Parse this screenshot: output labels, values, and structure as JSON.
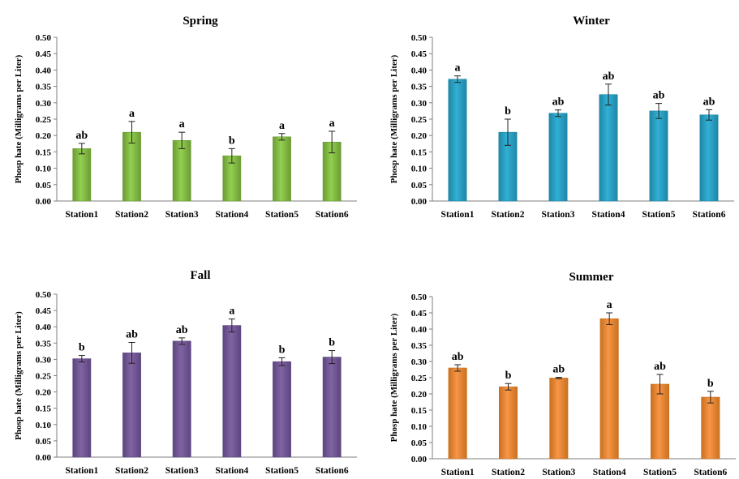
{
  "chart_data": [
    {
      "type": "bar",
      "title": "Spring",
      "ylabel": "Phosp hate (Milligrams per Liter)",
      "categories": [
        "Station1",
        "Station2",
        "Station3",
        "Station4",
        "Station5",
        "Station6"
      ],
      "values": [
        0.16,
        0.21,
        0.185,
        0.138,
        0.196,
        0.18
      ],
      "errors": [
        0.016,
        0.033,
        0.025,
        0.022,
        0.01,
        0.033
      ],
      "letters": [
        "ab",
        "a",
        "a",
        "b",
        "a",
        "a"
      ],
      "ylim": [
        0,
        0.5
      ],
      "yticks": [
        "0.00",
        "0.05",
        "0.10",
        "0.15",
        "0.20",
        "0.25",
        "0.30",
        "0.35",
        "0.40",
        "0.45",
        "0.50"
      ],
      "color": "#92d050"
    },
    {
      "type": "bar",
      "title": "Winter",
      "ylabel": "Phosp hate (Milligrams per Liter)",
      "categories": [
        "Station1",
        "Station2",
        "Station3",
        "Station4",
        "Station5",
        "Station6"
      ],
      "values": [
        0.372,
        0.21,
        0.268,
        0.325,
        0.275,
        0.263
      ],
      "errors": [
        0.01,
        0.04,
        0.01,
        0.032,
        0.023,
        0.016
      ],
      "letters": [
        "a",
        "b",
        "ab",
        "ab",
        "ab",
        "ab"
      ],
      "ylim": [
        0,
        0.5
      ],
      "yticks": [
        "0.00",
        "0.05",
        "0.10",
        "0.15",
        "0.20",
        "0.25",
        "0.30",
        "0.35",
        "0.40",
        "0.45",
        "0.50"
      ],
      "color": "#31b0d5"
    },
    {
      "type": "bar",
      "title": "Fall",
      "ylabel": "Phosp hate (Milligrams per Liter)",
      "categories": [
        "Station1",
        "Station2",
        "Station3",
        "Station4",
        "Station5",
        "Station6"
      ],
      "values": [
        0.302,
        0.32,
        0.356,
        0.404,
        0.293,
        0.307
      ],
      "errors": [
        0.01,
        0.032,
        0.01,
        0.02,
        0.012,
        0.02
      ],
      "letters": [
        "b",
        "ab",
        "ab",
        "a",
        "b",
        "b"
      ],
      "ylim": [
        0,
        0.5
      ],
      "yticks": [
        "0.00",
        "0.05",
        "0.10",
        "0.15",
        "0.20",
        "0.25",
        "0.30",
        "0.35",
        "0.40",
        "0.45",
        "0.50"
      ],
      "color": "#8064a2"
    },
    {
      "type": "bar",
      "title": "Summer",
      "ylabel": "Phosp hate (Milligrams per Liter)",
      "categories": [
        "Station1",
        "Station2",
        "Station3",
        "Station4",
        "Station5",
        "Station6"
      ],
      "values": [
        0.28,
        0.222,
        0.249,
        0.432,
        0.23,
        0.19
      ],
      "errors": [
        0.01,
        0.01,
        0.002,
        0.018,
        0.03,
        0.018
      ],
      "letters": [
        "ab",
        "b",
        "ab",
        "a",
        "ab",
        "b"
      ],
      "ylim": [
        0,
        0.5
      ],
      "yticks": [
        "0.00",
        "0.05",
        "0.10",
        "0.15",
        "0.20",
        "0.25",
        "0.30",
        "0.35",
        "0.40",
        "0.45",
        "0.50"
      ],
      "color": "#f79646"
    }
  ]
}
